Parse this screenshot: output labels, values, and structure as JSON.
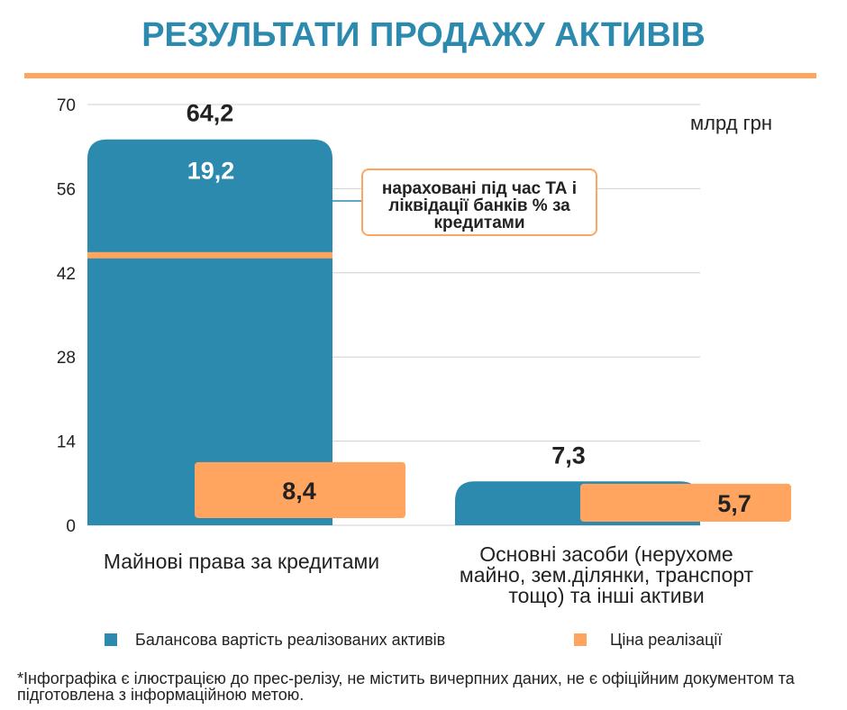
{
  "title": "РЕЗУЛЬТАТИ ПРОДАЖУ АКТИВІВ",
  "colors": {
    "title": "#2b8aae",
    "balance": "#2b8aae",
    "price": "#ffa55f"
  },
  "chart_data": {
    "type": "bar",
    "categories": [
      "Майнові права за кредитами",
      "Основні засоби (нерухоме майно, зем.ділянки, транспорт тощо) та інші активи"
    ],
    "series": [
      {
        "name": "Балансова вартість реалізованих активів",
        "values": [
          64.2,
          7.3
        ],
        "labels": [
          "64,2",
          "7,3"
        ]
      },
      {
        "name": "Ціна реалізації",
        "values": [
          8.4,
          5.7
        ],
        "labels": [
          "8,4",
          "5,7"
        ]
      }
    ],
    "segment": {
      "value": 19.2,
      "label": "19,2",
      "annotation": "нараховані під час ТА і ліквідації банків % за кредитами"
    },
    "unit": "млрд грн",
    "ylim": [
      0,
      70
    ],
    "yticks": [
      0,
      14,
      28,
      42,
      56,
      70
    ],
    "grid": true,
    "legend": "bottom"
  },
  "footnote": "*Інфографіка є ілюстрацією до прес-релізу,  не містить вичерпних даних, не є офіційним документом та підготовлена з інформаційною метою."
}
